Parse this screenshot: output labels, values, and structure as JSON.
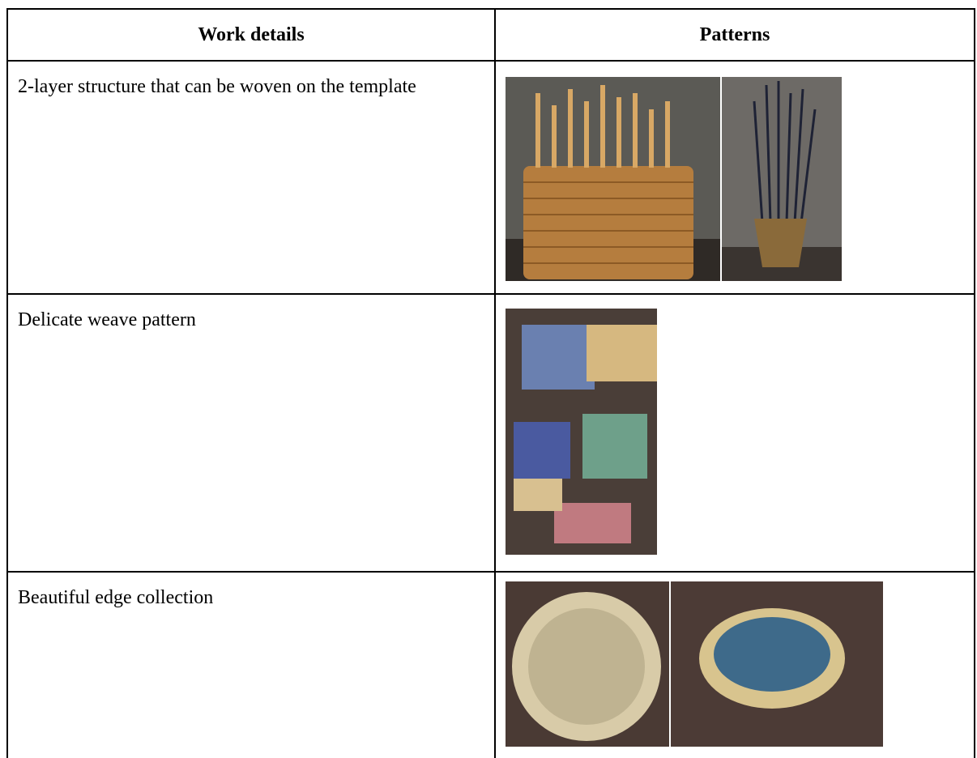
{
  "table": {
    "headers": [
      "Work details",
      "Patterns"
    ],
    "rows": [
      [
        "2-layer structure that can be woven on the template"
      ],
      [
        "Delicate weave pattern"
      ],
      [
        "Beautiful edge collection"
      ]
    ]
  }
}
